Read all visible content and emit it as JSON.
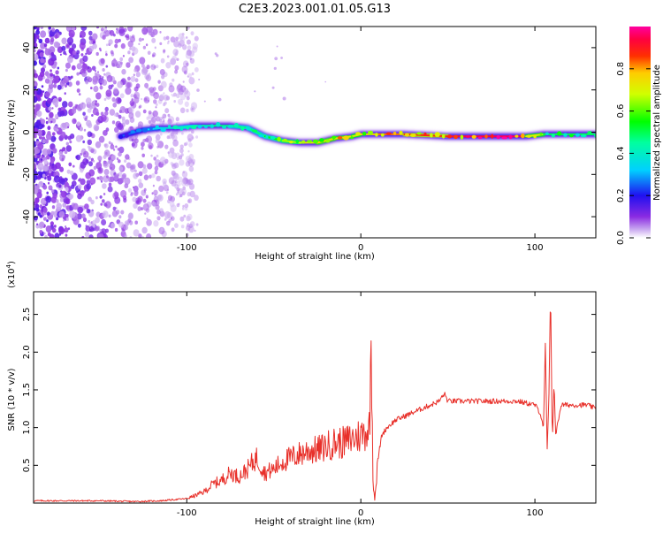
{
  "figure": {
    "title": "C2E3.2023.001.01.05.G13"
  },
  "chart_data": [
    {
      "type": "heatmap",
      "title": "C2E3.2023.001.01.05.G13",
      "xlabel": "Height of straight line (km)",
      "ylabel": "Frequency (Hz)",
      "xlim": [
        -188,
        135
      ],
      "ylim": [
        -50,
        50
      ],
      "x_ticks": [
        -100,
        0,
        100
      ],
      "x_tick_labels": [
        "-100",
        "0",
        "100"
      ],
      "y_ticks": [
        -40,
        -20,
        0,
        20,
        40
      ],
      "y_tick_labels": [
        "-40",
        "-20",
        "0",
        "20",
        "40"
      ],
      "colorbar": {
        "label": "Normalized spectral amplitude",
        "range": [
          0.0,
          1.0
        ],
        "ticks": [
          0.0,
          0.2,
          0.4,
          0.6,
          0.8
        ],
        "tick_labels": [
          "0.0",
          "0.2",
          "0.4",
          "0.6",
          "0.8"
        ],
        "colormap": "rainbow (white-violet-blue-cyan-green-yellow-red-magenta)"
      },
      "ridge": {
        "x": [
          -138,
          -125,
          -115,
          -105,
          -95,
          -85,
          -75,
          -65,
          -55,
          -45,
          -35,
          -25,
          -15,
          -5,
          0,
          10,
          25,
          50,
          75,
          95,
          105,
          115,
          135
        ],
        "freq": [
          -2,
          1,
          2,
          2,
          3,
          3,
          3,
          2,
          -2,
          -4,
          -5,
          -5,
          -3,
          -2,
          -1,
          -1,
          -1,
          -2,
          -2,
          -2,
          -1,
          -1,
          -1
        ],
        "amplitude": [
          0.2,
          0.3,
          0.35,
          0.4,
          0.45,
          0.45,
          0.5,
          0.45,
          0.5,
          0.6,
          0.7,
          0.75,
          0.8,
          0.7,
          0.75,
          0.8,
          0.85,
          0.9,
          0.95,
          0.95,
          0.5,
          0.5,
          0.5
        ]
      },
      "noise_region_x": [
        -188,
        -100
      ]
    },
    {
      "type": "line",
      "xlabel": "Height of straight line (km)",
      "ylabel": "SNR (10 * v/v)",
      "y_multiplier": "(x10^4)",
      "xlim": [
        -188,
        135
      ],
      "ylim": [
        0,
        2.8
      ],
      "x_ticks": [
        -100,
        0,
        100
      ],
      "x_tick_labels": [
        "-100",
        "0",
        "100"
      ],
      "y_ticks": [
        0.5,
        1.0,
        1.5,
        2.0,
        2.5
      ],
      "y_tick_labels": [
        "0.5",
        "1.0",
        "1.5",
        "2.0",
        "2.5"
      ],
      "series": [
        {
          "color": "#e8302a",
          "x": [
            -188,
            -170,
            -150,
            -130,
            -115,
            -105,
            -100,
            -95,
            -90,
            -85,
            -80,
            -75,
            -70,
            -65,
            -60,
            -55,
            -50,
            -45,
            -40,
            -35,
            -30,
            -25,
            -20,
            -15,
            -10,
            -5,
            0,
            3,
            5,
            6,
            7,
            8,
            10,
            12,
            15,
            20,
            25,
            30,
            35,
            40,
            45,
            48,
            50,
            55,
            60,
            70,
            80,
            90,
            100,
            103,
            105,
            106,
            107,
            108,
            109,
            110,
            111,
            112,
            115,
            120,
            125,
            130,
            135
          ],
          "y": [
            0.03,
            0.03,
            0.03,
            0.02,
            0.03,
            0.05,
            0.06,
            0.1,
            0.15,
            0.25,
            0.3,
            0.4,
            0.35,
            0.45,
            0.6,
            0.4,
            0.45,
            0.55,
            0.6,
            0.65,
            0.7,
            0.7,
            0.75,
            0.8,
            0.8,
            0.85,
            0.9,
            0.95,
            1.0,
            2.15,
            0.3,
            0.05,
            0.6,
            0.9,
            1.0,
            1.1,
            1.15,
            1.2,
            1.25,
            1.3,
            1.35,
            1.45,
            1.35,
            1.35,
            1.35,
            1.35,
            1.35,
            1.35,
            1.3,
            1.2,
            1.0,
            2.1,
            0.7,
            1.3,
            2.8,
            0.8,
            1.6,
            0.9,
            1.3,
            1.3,
            1.3,
            1.3,
            1.25
          ]
        }
      ]
    }
  ]
}
